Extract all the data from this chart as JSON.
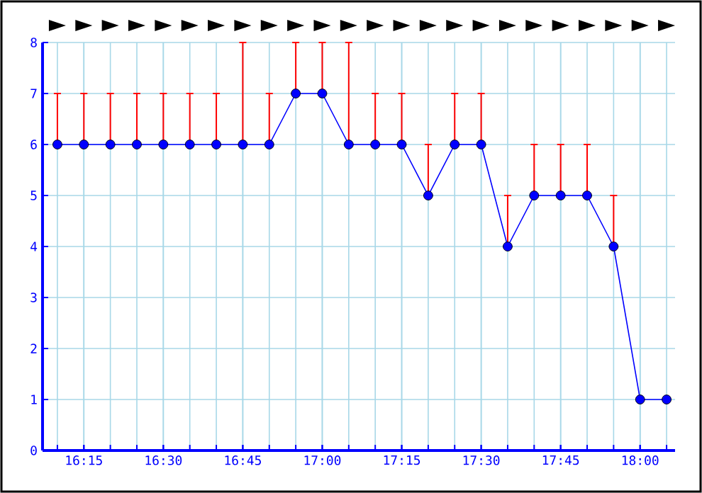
{
  "chart_data": {
    "type": "line",
    "x": [
      16.166667,
      16.25,
      16.333333,
      16.416667,
      16.5,
      16.583333,
      16.666667,
      16.75,
      16.833333,
      16.916667,
      17.0,
      17.083333,
      17.166667,
      17.25,
      17.333333,
      17.416667,
      17.5,
      17.583333,
      17.666667,
      17.75,
      17.833333,
      17.916667,
      18.0,
      18.083333
    ],
    "series": [
      {
        "color": "#0000ff",
        "values": [
          6,
          6,
          6,
          6,
          6,
          6,
          6,
          6,
          6,
          7,
          7,
          6,
          6,
          6,
          5,
          6,
          6,
          4,
          5,
          5,
          5,
          4,
          1,
          1
        ],
        "errors": [
          [
            6,
            7
          ],
          [
            6,
            7
          ],
          [
            6,
            7
          ],
          [
            6,
            7
          ],
          [
            6,
            7
          ],
          [
            6,
            7
          ],
          [
            6,
            7
          ],
          [
            6,
            8
          ],
          [
            6,
            7
          ],
          [
            7,
            8
          ],
          [
            7,
            8
          ],
          [
            6,
            8
          ],
          [
            6,
            7
          ],
          [
            6,
            7
          ],
          [
            5,
            6
          ],
          [
            6,
            7
          ],
          [
            6,
            7
          ],
          [
            4,
            5
          ],
          [
            5,
            6
          ],
          [
            5,
            6
          ],
          [
            5,
            6
          ],
          [
            4,
            5
          ],
          null,
          null
        ]
      }
    ],
    "xlim": [
      16.12,
      18.11
    ],
    "xticks": [
      {
        "value": 16.25,
        "label": "16:15"
      },
      {
        "value": 16.5,
        "label": "16:30"
      },
      {
        "value": 16.75,
        "label": "16:45"
      },
      {
        "value": 17.0,
        "label": "17:00"
      },
      {
        "value": 17.25,
        "label": "17:15"
      },
      {
        "value": 17.5,
        "label": "17:30"
      },
      {
        "value": 17.75,
        "label": "17:45"
      },
      {
        "value": 18.0,
        "label": "18:00"
      }
    ],
    "ylim": [
      0,
      8
    ],
    "yticks": [
      0,
      1,
      2,
      3,
      4,
      5,
      6,
      7,
      8
    ],
    "grid": true,
    "marker": "circle",
    "line_style": "solid"
  }
}
